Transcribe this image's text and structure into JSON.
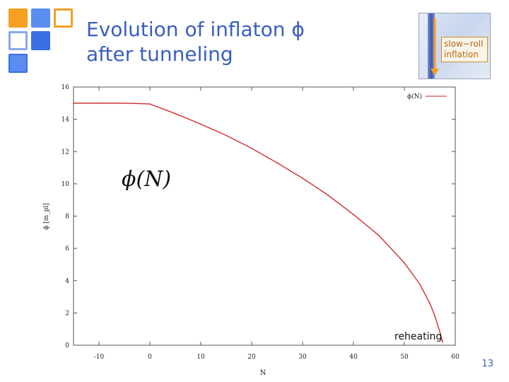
{
  "slide": {
    "title_lines": [
      "Evolution of inflaton ϕ",
      "after tunneling"
    ],
    "page_number": "13",
    "inset_label_lines": [
      "slow−roll",
      "inflation"
    ],
    "plot_annotation": "ϕ(N)",
    "reheating_label": "reheating",
    "colors": {
      "title": "#3a5fbf",
      "curve": "#cc2222",
      "accent_orange": "#f5a020",
      "accent_blue": "#3a6fe6"
    }
  },
  "chart_data": {
    "type": "line",
    "title": "",
    "xlabel": "N",
    "ylabel": "ϕ [m_pl]",
    "xlim": [
      -15,
      60
    ],
    "ylim": [
      0,
      16
    ],
    "xticks": [
      -10,
      0,
      10,
      20,
      30,
      40,
      50,
      60
    ],
    "yticks": [
      0,
      2,
      4,
      6,
      8,
      10,
      12,
      14,
      16
    ],
    "grid": false,
    "legend": {
      "placement": "top-right",
      "entries": [
        "ϕ(N)"
      ]
    },
    "series": [
      {
        "name": "ϕ(N)",
        "x": [
          -15,
          -10,
          -5,
          0,
          5,
          10,
          15,
          20,
          25,
          30,
          35,
          40,
          45,
          50,
          53,
          55,
          56,
          57,
          57.5
        ],
        "y": [
          15,
          15,
          15,
          14.95,
          14.35,
          13.7,
          13.0,
          12.2,
          11.3,
          10.35,
          9.3,
          8.1,
          6.8,
          5.1,
          3.8,
          2.6,
          1.8,
          0.8,
          0.2
        ]
      }
    ]
  }
}
